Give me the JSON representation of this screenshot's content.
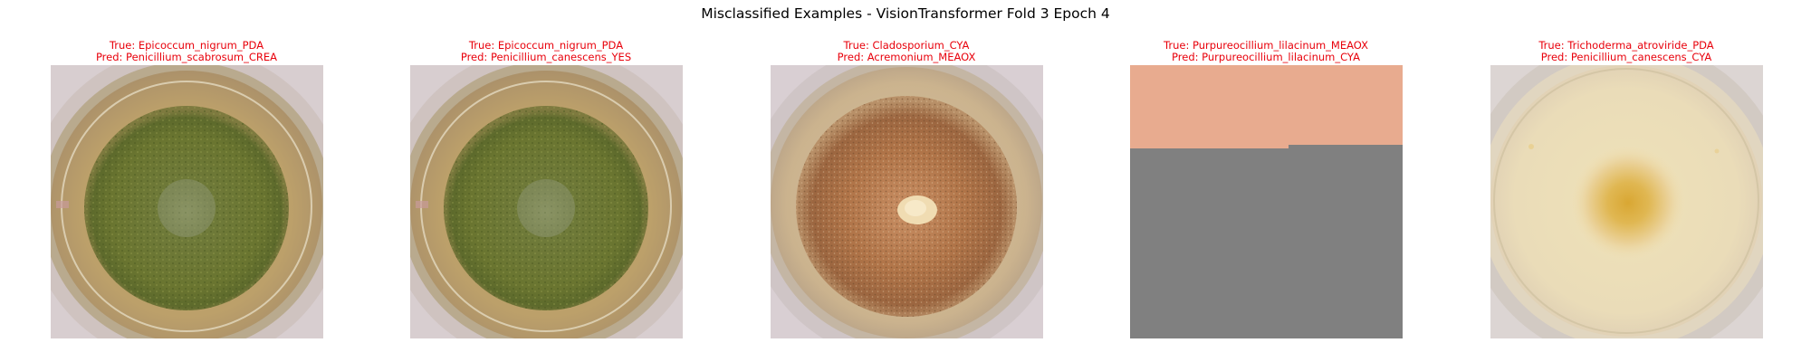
{
  "figure": {
    "title": "Misclassified Examples - VisionTransformer Fold 3 Epoch 4"
  },
  "examples": [
    {
      "true_label": "True: Epicoccum_nigrum_PDA",
      "pred_label": "Pred: Penicillium_scabrosum_CREA",
      "image_content": "petri-dish-green-colony"
    },
    {
      "true_label": "True: Epicoccum_nigrum_PDA",
      "pred_label": "Pred: Penicillium_canescens_YES",
      "image_content": "petri-dish-green-colony"
    },
    {
      "true_label": "True: Cladosporium_CYA",
      "pred_label": "Pred: Acremonium_MEAOX",
      "image_content": "petri-dish-brown-colony"
    },
    {
      "true_label": "True: Purpureocillium_lilacinum_MEAOX",
      "pred_label": "Pred: Purpureocillium_lilacinum_CYA",
      "image_content": "salmon-and-gray-blocks"
    },
    {
      "true_label": "True: Trichoderma_atroviride_PDA",
      "pred_label": "Pred: Penicillium_canescens_CYA",
      "image_content": "petri-dish-pale-yellow-colony"
    }
  ],
  "colors": {
    "caption_text": "#e8000b",
    "title_text": "#000000"
  }
}
